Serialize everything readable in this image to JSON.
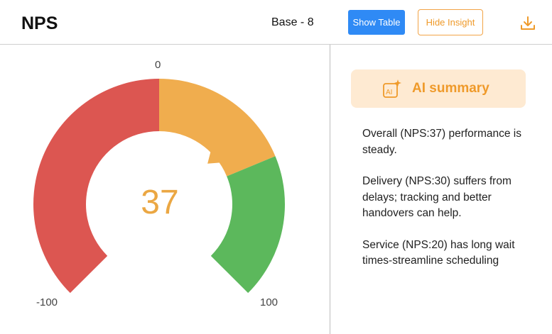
{
  "header": {
    "title": "NPS",
    "base": "Base - 8",
    "show_table_label": "Show Table",
    "hide_insight_label": "Hide Insight",
    "download_icon": "download-icon"
  },
  "gauge": {
    "value": "37",
    "score": 37,
    "min": -100,
    "max": 100,
    "tick_min": "-100",
    "tick_mid": "0",
    "tick_max": "100",
    "colors": {
      "detractor": "#dc5651",
      "passive": "#f0ad4e",
      "promoter": "#5cb85c",
      "needle": "#f0ad4e",
      "value": "#eba743"
    }
  },
  "insight_panel": {
    "ai_summary_label": "AI summary",
    "ai_icon": "ai-sparkle-icon",
    "insights": [
      "Overall (NPS:37) performance is steady.",
      "Delivery (NPS:30) suffers from delays; tracking and better handovers can help.",
      "Service (NPS:20) has long wait times-streamline scheduling"
    ]
  }
}
